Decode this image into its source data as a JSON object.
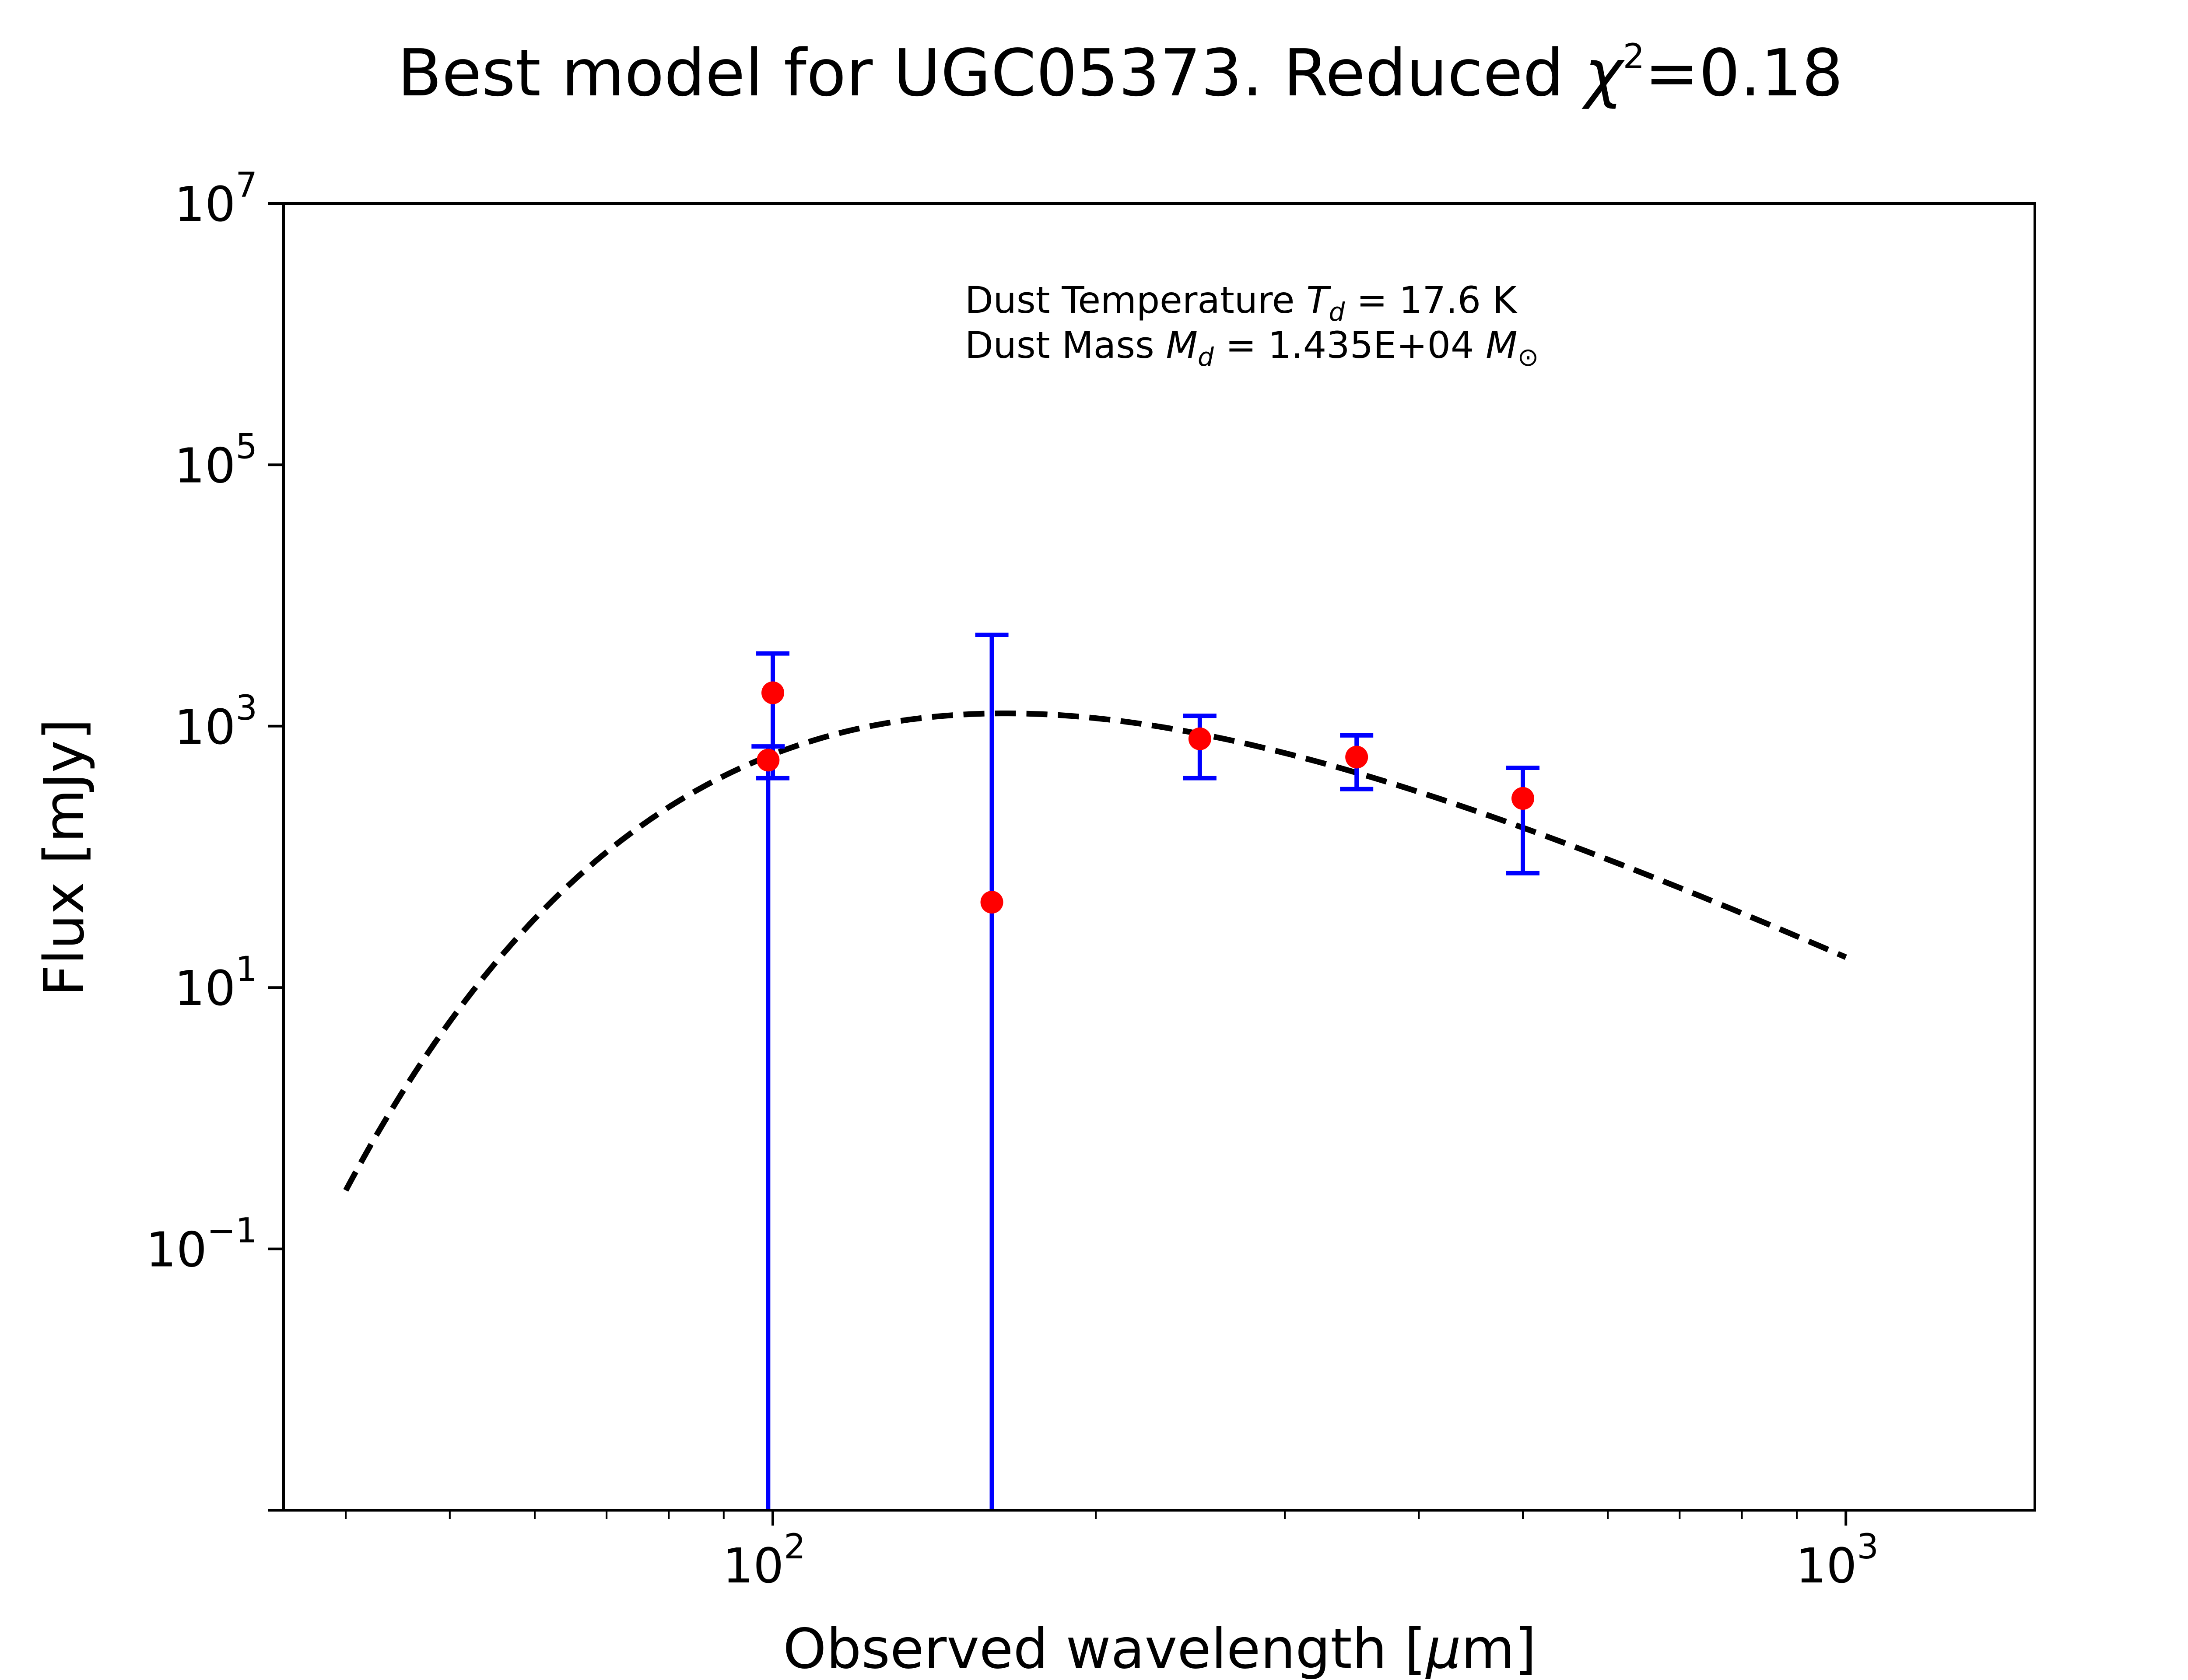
{
  "chart_data": {
    "type": "scatter",
    "title": {
      "text": "Best model for UGC05373. Reduced ",
      "symbol": "χ",
      "superscript": "2",
      "suffix": "=0.18"
    },
    "xlabel": {
      "text": "Observed wavelength [",
      "symbol": "μ",
      "suffix": "m]"
    },
    "ylabel": "Flux [mJy]",
    "xscale": "log",
    "yscale": "log",
    "xlim": [
      35,
      1500
    ],
    "ylim": [
      0.001,
      10000000
    ],
    "grid": false,
    "x_ticks": [
      {
        "value": 100,
        "base": "10",
        "exp": "2"
      },
      {
        "value": 1000,
        "base": "10",
        "exp": "3"
      }
    ],
    "y_ticks": [
      {
        "value": 10000000,
        "base": "10",
        "exp": "7"
      },
      {
        "value": 100000,
        "base": "10",
        "exp": "5"
      },
      {
        "value": 1000,
        "base": "10",
        "exp": "3"
      },
      {
        "value": 10,
        "base": "10",
        "exp": "1"
      },
      {
        "value": 0.1,
        "base": "10",
        "exp": "−1"
      }
    ],
    "annotation": {
      "line1_prefix": "Dust Temperature ",
      "line1_symbol": "T",
      "line1_sub": "d",
      "line1_value": " = 17.6 K",
      "line2_prefix": "Dust Mass ",
      "line2_symbol": "M",
      "line2_sub": "d",
      "line2_value": " = 1.435E+04 ",
      "line2_unit": "M",
      "line2_unit_sub": "⊙"
    },
    "observed": [
      {
        "x": 100,
        "y": 1800,
        "yerr_low": 400,
        "yerr_high": 3600
      },
      {
        "x": 160,
        "y": 45,
        "yerr_low": 0.001,
        "yerr_high": 5000
      },
      {
        "x": 250,
        "y": 800,
        "yerr_low": 400,
        "yerr_high": 1200
      },
      {
        "x": 350,
        "y": 580,
        "yerr_low": 330,
        "yerr_high": 850
      },
      {
        "x": 500,
        "y": 280,
        "yerr_low": 75,
        "yerr_high": 480
      }
    ],
    "model_points": [
      {
        "x": 99,
        "y": 550,
        "yerr_low": 0.001,
        "yerr_high": 700
      }
    ],
    "model_curve": {
      "T_dust": 17.6,
      "x_range": [
        40,
        1000
      ],
      "peak_x": 170,
      "peak_y": 1250,
      "beta": 2
    },
    "colors": {
      "errorbar": "#0000ff",
      "marker": "#ff0000",
      "model": "#000000",
      "axes": "#000000"
    }
  }
}
